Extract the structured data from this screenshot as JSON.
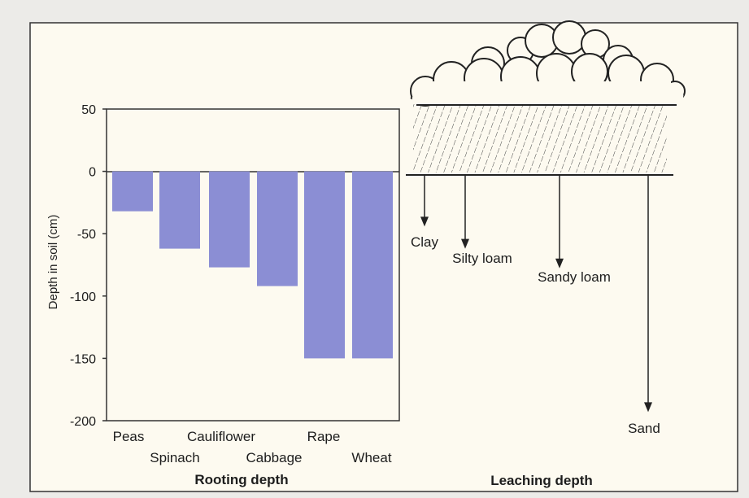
{
  "chart_data": [
    {
      "type": "bar",
      "title": "",
      "caption": "Rooting depth",
      "xlabel": "",
      "ylabel": "Depth in soil (cm)",
      "ylim": [
        -200,
        50
      ],
      "yticks": [
        50,
        0,
        -50,
        -100,
        -150,
        -200
      ],
      "categories": [
        "Peas",
        "Spinach",
        "Cauliflower",
        "Cabbage",
        "Rape",
        "Wheat"
      ],
      "values": [
        -32,
        -62,
        -77,
        -92,
        -150,
        -150
      ],
      "bar_color": "#8b8ed4",
      "grid": false
    },
    {
      "type": "diagram",
      "caption": "Leaching depth",
      "soils": [
        {
          "label": "Clay",
          "depth": -42
        },
        {
          "label": "Silty loam",
          "depth": -60
        },
        {
          "label": "Sandy loam",
          "depth": -76
        },
        {
          "label": "Sand",
          "depth": -193
        }
      ]
    }
  ],
  "colors": {
    "background": "#ecebe8",
    "panel": "#fdfaf0",
    "bar": "#8b8ed4",
    "ink": "#1d1d1d"
  }
}
